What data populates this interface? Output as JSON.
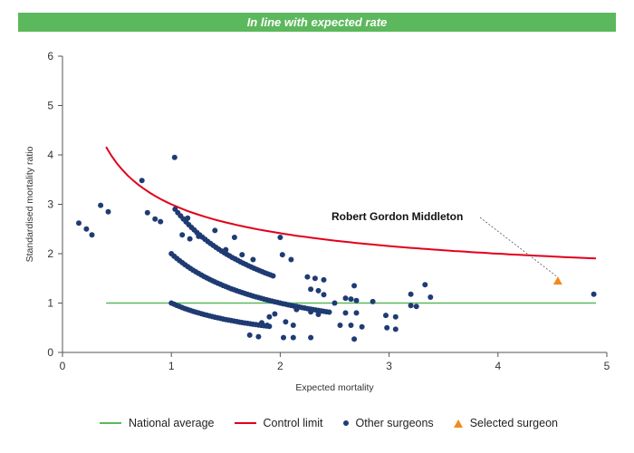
{
  "banner": {
    "text": "In line with expected rate"
  },
  "colors": {
    "banner": "#5cb85c",
    "national_average": "#5cb85c",
    "control_limit": "#e2001a",
    "other_surgeons": "#1f3b73",
    "selected_surgeon": "#f08c1e",
    "annotation_line": "#555555"
  },
  "legend": {
    "national_average": "National average",
    "control_limit": "Control limit",
    "other_surgeons": "Other surgeons",
    "selected_surgeon": "Selected surgeon"
  },
  "chart_data": {
    "type": "scatter",
    "xlabel": "Expected mortality",
    "ylabel": "Standardised mortality ratio",
    "xlim": [
      0,
      5
    ],
    "ylim": [
      0,
      6
    ],
    "xticks": [
      0,
      1,
      2,
      3,
      4,
      5
    ],
    "yticks": [
      0,
      1,
      2,
      3,
      4,
      5,
      6
    ],
    "national_average": {
      "y": 1,
      "x_from": 0.4,
      "x_to": 4.9
    },
    "control_limit": {
      "x_from": 0.4,
      "x_to": 4.9,
      "description": "upper control limit curve"
    },
    "selected_surgeon": {
      "name": "Robert Gordon Middleton",
      "x": 4.55,
      "y": 1.43
    },
    "other_surgeons_extra": [
      [
        0.73,
        3.48
      ],
      [
        1.03,
        3.95
      ],
      [
        0.35,
        2.98
      ],
      [
        0.42,
        2.85
      ],
      [
        0.15,
        2.62
      ],
      [
        0.22,
        2.5
      ],
      [
        0.27,
        2.38
      ],
      [
        0.78,
        2.83
      ],
      [
        0.85,
        2.7
      ],
      [
        0.9,
        2.65
      ],
      [
        1.15,
        2.72
      ],
      [
        1.1,
        2.38
      ],
      [
        1.17,
        2.3
      ],
      [
        1.25,
        2.35
      ],
      [
        1.4,
        2.47
      ],
      [
        1.58,
        2.33
      ],
      [
        1.5,
        2.08
      ],
      [
        1.65,
        1.98
      ],
      [
        1.75,
        1.88
      ],
      [
        2.0,
        2.33
      ],
      [
        2.02,
        1.98
      ],
      [
        2.1,
        1.88
      ],
      [
        2.25,
        1.53
      ],
      [
        2.32,
        1.5
      ],
      [
        2.4,
        1.47
      ],
      [
        2.4,
        1.17
      ],
      [
        2.28,
        1.28
      ],
      [
        2.35,
        1.25
      ],
      [
        2.5,
        1.0
      ],
      [
        2.6,
        1.1
      ],
      [
        2.65,
        1.08
      ],
      [
        2.68,
        1.35
      ],
      [
        2.7,
        1.05
      ],
      [
        2.85,
        1.03
      ],
      [
        2.6,
        0.8
      ],
      [
        2.7,
        0.8
      ],
      [
        2.65,
        0.55
      ],
      [
        2.75,
        0.52
      ],
      [
        2.68,
        0.27
      ],
      [
        2.97,
        0.75
      ],
      [
        3.06,
        0.72
      ],
      [
        2.98,
        0.5
      ],
      [
        3.06,
        0.47
      ],
      [
        3.2,
        1.18
      ],
      [
        3.33,
        1.37
      ],
      [
        3.38,
        1.12
      ],
      [
        3.2,
        0.95
      ],
      [
        3.25,
        0.93
      ],
      [
        4.88,
        1.18
      ],
      [
        2.28,
        0.82
      ],
      [
        2.35,
        0.77
      ],
      [
        2.05,
        0.62
      ],
      [
        2.12,
        0.55
      ],
      [
        2.03,
        0.3
      ],
      [
        2.12,
        0.3
      ],
      [
        2.28,
        0.3
      ],
      [
        1.83,
        0.6
      ],
      [
        1.88,
        0.55
      ],
      [
        1.72,
        0.35
      ],
      [
        1.8,
        0.32
      ],
      [
        2.55,
        0.55
      ],
      [
        2.15,
        0.87
      ],
      [
        1.95,
        0.78
      ],
      [
        1.9,
        0.72
      ]
    ]
  }
}
